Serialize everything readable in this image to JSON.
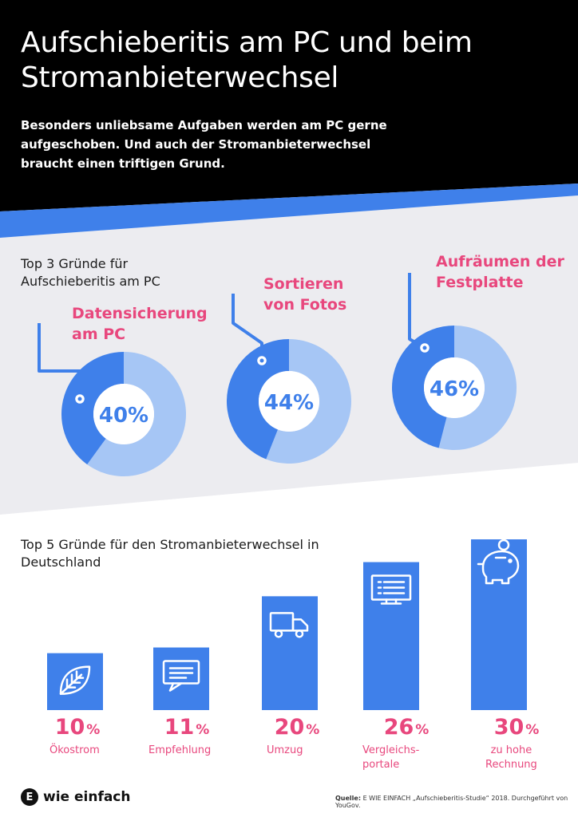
{
  "title": "Aufschieberitis am PC und beim Stromanbieterwechsel",
  "subtitle": "Besonders unliebsame Aufgaben werden am PC gerne aufgeschoben. Und auch der Stromanbieterwechsel braucht einen triftigen Grund.",
  "colors": {
    "dark": "#000000",
    "blue": "#3f80ea",
    "light_blue": "#a6c6f5",
    "pink": "#e8477d",
    "grey_bg": "#ececf0"
  },
  "chart_data": [
    {
      "type": "pie",
      "title": "Top 3 Gründe für Aufschieberitis am PC",
      "slices": [
        {
          "label": "Datensicherung am PC",
          "value": 40,
          "value_label": "40%"
        },
        {
          "label": "Sortieren von Fotos",
          "value": 44,
          "value_label": "44%"
        },
        {
          "label": "Aufräumen der Festplatte",
          "value": 46,
          "value_label": "46%"
        }
      ]
    },
    {
      "type": "bar",
      "title": "Top 5 Gründe für den Stromanbieterwechsel in Deutschland",
      "categories": [
        "Ökostrom",
        "Empfehlung",
        "Umzug",
        "Vergleichs-\nportale",
        "zu hohe\nRechnung"
      ],
      "values": [
        10,
        11,
        20,
        26,
        30
      ],
      "value_numbers": [
        "10",
        "11",
        "20",
        "26",
        "30"
      ],
      "unit": "%",
      "icons": [
        "leaf-icon",
        "speech-bubble-icon",
        "truck-icon",
        "monitor-icon",
        "piggy-bank-icon"
      ]
    }
  ],
  "footer": {
    "brand_letter": "E",
    "brand": "wie einfach",
    "source_label": "Quelle:",
    "source": "E WIE EINFACH „Aufschieberitis-Studie“ 2018. Durchgeführt von YouGov."
  }
}
